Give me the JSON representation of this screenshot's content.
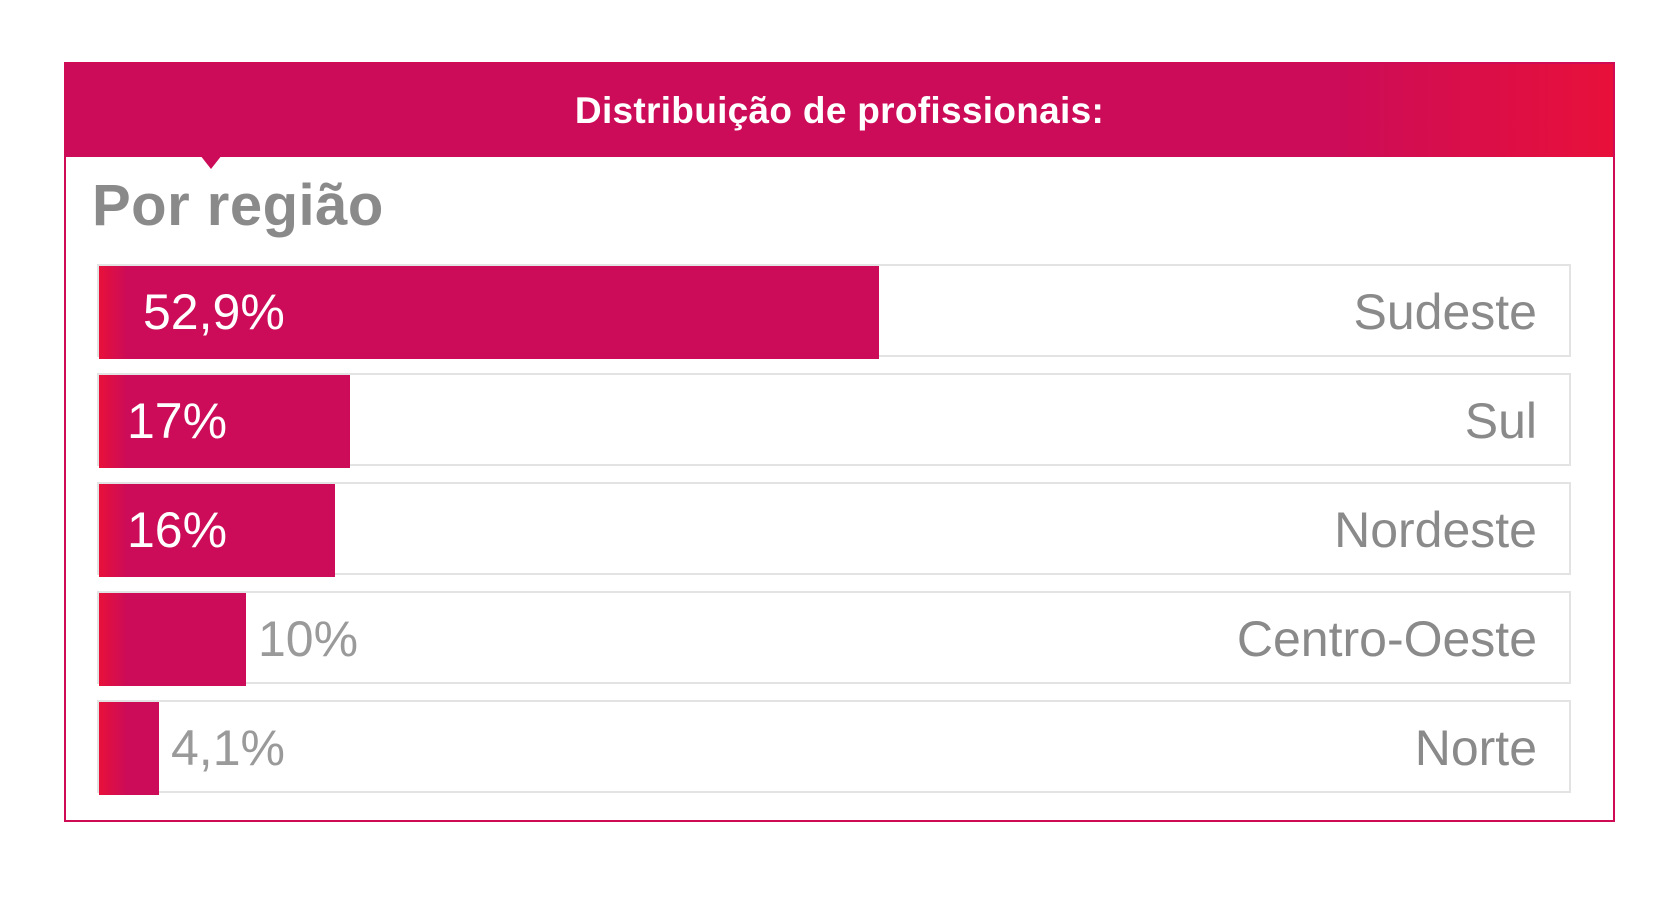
{
  "header": {
    "title": "Distribuição de profissionais:"
  },
  "colors": {
    "accent": "#cc0c58",
    "accent_gradient_end": "#e8103a",
    "label_gray": "#8a8a8a",
    "track_border": "#e3e3e3"
  },
  "chart_data": {
    "type": "bar",
    "orientation": "horizontal",
    "title": "Distribuição de profissionais:",
    "subtitle": "Por região",
    "categories": [
      "Sudeste",
      "Sul",
      "Nordeste",
      "Centro-Oeste",
      "Norte"
    ],
    "values": [
      52.9,
      17,
      16,
      10,
      4.1
    ],
    "value_labels": [
      "52,9%",
      "17%",
      "16%",
      "10%",
      "4,1%"
    ],
    "unit": "%",
    "xlim": [
      0,
      100
    ],
    "grid": false,
    "legend": "none"
  }
}
